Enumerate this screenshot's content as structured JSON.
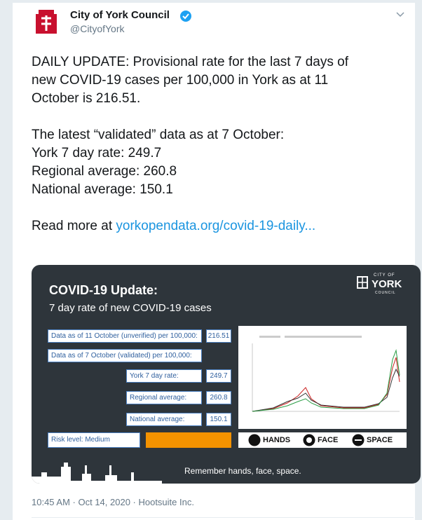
{
  "header": {
    "name": "City of York Council",
    "handle": "@CityofYork"
  },
  "tweet": {
    "paragraphs": [
      [
        "DAILY UPDATE: Provisional rate for the last 7 days of",
        "new COVID-19 cases per 100,000 in York as at 11",
        "October is 216.51."
      ],
      [
        "The latest “validated” data as at 7 October:",
        "York 7 day rate: 249.7",
        "Regional average: 260.8",
        "National average: 150.1"
      ]
    ],
    "link_prefix": "Read more at",
    "link": "yorkopendata.org/covid-19-daily..."
  },
  "image": {
    "title": "COVID-19 Update:",
    "subtitle": "7 day rate of new COVID-19 cases",
    "logo_top": "CITY OF",
    "logo": "YORK",
    "logo_bottom": "COUNCIL",
    "unverified": {
      "label": "Data as of 11 October (unverified) per 100,000:",
      "value": "216.51"
    },
    "validated_heading": "Data as of 7 October (validated) per 100,000:",
    "rows": [
      {
        "label": "York 7 day rate:",
        "value": "249.7"
      },
      {
        "label": "Regional average:",
        "value": "260.8"
      },
      {
        "label": "National average:",
        "value": "150.1"
      }
    ],
    "risk": "Risk level: Medium",
    "hands": "HANDS",
    "face": "FACE",
    "space": "SPACE",
    "footer": "Remember hands, face, space."
  },
  "meta": "10:45 AM · Oct 14, 2020 · Hootsuite Inc."
}
